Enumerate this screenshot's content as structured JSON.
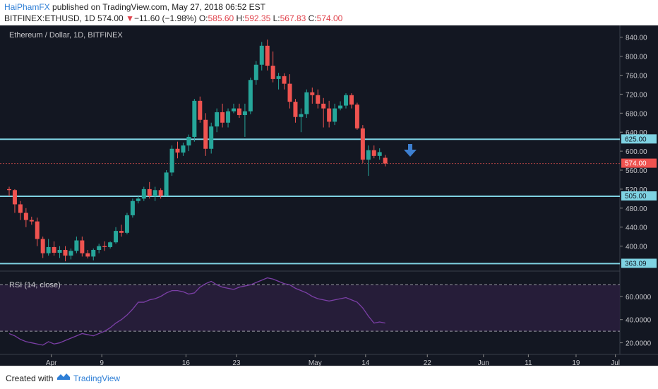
{
  "header": {
    "author": "HaiPhamFX",
    "published": " published on TradingView.com, May 27, 2018 06:52 EST",
    "symbol": "BITFINEX:ETHUSD, 1D",
    "price": "574.00",
    "change_arrow": "▼",
    "change": "−11.60 (−1.98%)",
    "o_label": "O:",
    "o_val": "585.60",
    "h_label": "H:",
    "h_val": "592.35",
    "l_label": "L:",
    "l_val": "567.83",
    "c_label": "C:",
    "c_val": "574.00"
  },
  "footer": {
    "created": "Created with",
    "brand": "TradingView"
  },
  "colors": {
    "up": "#26a69a",
    "down": "#ef5350",
    "level": "#7fd3e3",
    "rsi": "#7b3fa6",
    "bg": "#131722"
  },
  "chart_data": {
    "type": "candlestick",
    "title": "Ethereum / Dollar, 1D, BITFINEX",
    "ylim": [
      360,
      850
    ],
    "y_ticks": [
      400,
      440,
      480,
      520,
      560,
      600,
      640,
      680,
      720,
      760,
      800,
      840
    ],
    "x_ticks": [
      "Apr",
      "9",
      "16",
      "23",
      "May",
      "14",
      "22",
      "Jun",
      "11",
      "19",
      "Jul"
    ],
    "level_lines": [
      625.0,
      505.0,
      363.09
    ],
    "level_labels": [
      "625.00",
      "505.00",
      "363.09"
    ],
    "last_price": 574.0,
    "last_price_label": "574.00",
    "candles": [
      {
        "o": 520,
        "h": 525,
        "l": 505,
        "c": 518
      },
      {
        "o": 518,
        "h": 520,
        "l": 470,
        "c": 488
      },
      {
        "o": 488,
        "h": 495,
        "l": 455,
        "c": 470
      },
      {
        "o": 470,
        "h": 480,
        "l": 440,
        "c": 455
      },
      {
        "o": 455,
        "h": 462,
        "l": 445,
        "c": 452
      },
      {
        "o": 452,
        "h": 460,
        "l": 400,
        "c": 415
      },
      {
        "o": 415,
        "h": 420,
        "l": 375,
        "c": 385
      },
      {
        "o": 385,
        "h": 415,
        "l": 380,
        "c": 398
      },
      {
        "o": 398,
        "h": 410,
        "l": 380,
        "c": 386
      },
      {
        "o": 386,
        "h": 400,
        "l": 375,
        "c": 392
      },
      {
        "o": 392,
        "h": 400,
        "l": 368,
        "c": 380
      },
      {
        "o": 380,
        "h": 395,
        "l": 372,
        "c": 390
      },
      {
        "o": 390,
        "h": 420,
        "l": 385,
        "c": 412
      },
      {
        "o": 412,
        "h": 420,
        "l": 378,
        "c": 385
      },
      {
        "o": 385,
        "h": 392,
        "l": 374,
        "c": 378
      },
      {
        "o": 378,
        "h": 395,
        "l": 370,
        "c": 392
      },
      {
        "o": 392,
        "h": 405,
        "l": 385,
        "c": 400
      },
      {
        "o": 400,
        "h": 410,
        "l": 390,
        "c": 398
      },
      {
        "o": 398,
        "h": 410,
        "l": 395,
        "c": 408
      },
      {
        "o": 408,
        "h": 440,
        "l": 405,
        "c": 432
      },
      {
        "o": 432,
        "h": 445,
        "l": 420,
        "c": 428
      },
      {
        "o": 428,
        "h": 470,
        "l": 425,
        "c": 465
      },
      {
        "o": 465,
        "h": 500,
        "l": 460,
        "c": 495
      },
      {
        "o": 495,
        "h": 505,
        "l": 490,
        "c": 500
      },
      {
        "o": 500,
        "h": 525,
        "l": 495,
        "c": 520
      },
      {
        "o": 520,
        "h": 535,
        "l": 500,
        "c": 505
      },
      {
        "o": 505,
        "h": 525,
        "l": 495,
        "c": 518
      },
      {
        "o": 518,
        "h": 522,
        "l": 500,
        "c": 506
      },
      {
        "o": 506,
        "h": 560,
        "l": 505,
        "c": 555
      },
      {
        "o": 555,
        "h": 612,
        "l": 548,
        "c": 605
      },
      {
        "o": 605,
        "h": 620,
        "l": 585,
        "c": 597
      },
      {
        "o": 597,
        "h": 618,
        "l": 590,
        "c": 612
      },
      {
        "o": 612,
        "h": 635,
        "l": 600,
        "c": 630
      },
      {
        "o": 630,
        "h": 710,
        "l": 620,
        "c": 706
      },
      {
        "o": 706,
        "h": 715,
        "l": 660,
        "c": 666
      },
      {
        "o": 666,
        "h": 680,
        "l": 590,
        "c": 605
      },
      {
        "o": 605,
        "h": 660,
        "l": 595,
        "c": 652
      },
      {
        "o": 652,
        "h": 690,
        "l": 640,
        "c": 682
      },
      {
        "o": 682,
        "h": 700,
        "l": 650,
        "c": 660
      },
      {
        "o": 660,
        "h": 690,
        "l": 650,
        "c": 684
      },
      {
        "o": 684,
        "h": 700,
        "l": 680,
        "c": 690
      },
      {
        "o": 690,
        "h": 700,
        "l": 670,
        "c": 676
      },
      {
        "o": 676,
        "h": 700,
        "l": 630,
        "c": 684
      },
      {
        "o": 684,
        "h": 755,
        "l": 678,
        "c": 750
      },
      {
        "o": 750,
        "h": 790,
        "l": 740,
        "c": 782
      },
      {
        "o": 782,
        "h": 830,
        "l": 770,
        "c": 822
      },
      {
        "o": 822,
        "h": 835,
        "l": 770,
        "c": 780
      },
      {
        "o": 780,
        "h": 810,
        "l": 745,
        "c": 752
      },
      {
        "o": 752,
        "h": 765,
        "l": 730,
        "c": 758
      },
      {
        "o": 758,
        "h": 764,
        "l": 730,
        "c": 742
      },
      {
        "o": 742,
        "h": 762,
        "l": 690,
        "c": 704
      },
      {
        "o": 704,
        "h": 710,
        "l": 660,
        "c": 672
      },
      {
        "o": 672,
        "h": 690,
        "l": 640,
        "c": 678
      },
      {
        "o": 678,
        "h": 730,
        "l": 670,
        "c": 724
      },
      {
        "o": 724,
        "h": 734,
        "l": 700,
        "c": 718
      },
      {
        "o": 718,
        "h": 730,
        "l": 690,
        "c": 700
      },
      {
        "o": 700,
        "h": 712,
        "l": 650,
        "c": 690
      },
      {
        "o": 690,
        "h": 706,
        "l": 650,
        "c": 662
      },
      {
        "o": 662,
        "h": 700,
        "l": 655,
        "c": 690
      },
      {
        "o": 690,
        "h": 705,
        "l": 686,
        "c": 696
      },
      {
        "o": 696,
        "h": 722,
        "l": 690,
        "c": 718
      },
      {
        "o": 718,
        "h": 722,
        "l": 690,
        "c": 698
      },
      {
        "o": 698,
        "h": 702,
        "l": 645,
        "c": 648
      },
      {
        "o": 648,
        "h": 655,
        "l": 575,
        "c": 582
      },
      {
        "o": 582,
        "h": 612,
        "l": 548,
        "c": 602
      },
      {
        "o": 602,
        "h": 612,
        "l": 585,
        "c": 590
      },
      {
        "o": 590,
        "h": 606,
        "l": 582,
        "c": 598
      },
      {
        "o": 586,
        "h": 592,
        "l": 568,
        "c": 574
      }
    ],
    "rsi": {
      "label": "RSI (14, close)",
      "ylim": [
        10,
        80
      ],
      "ticks": [
        20,
        40,
        60
      ],
      "tick_labels": [
        "20.0000",
        "40.0000",
        "60.0000"
      ],
      "bands": [
        70,
        30
      ],
      "values": [
        28,
        26,
        23,
        21,
        20,
        19,
        18,
        21,
        19,
        20,
        22,
        24,
        26,
        28,
        27,
        26,
        28,
        30,
        33,
        37,
        40,
        44,
        49,
        55,
        55,
        57,
        58,
        60,
        63,
        65,
        65,
        64,
        62,
        63,
        68,
        71,
        73,
        70,
        68,
        67,
        66,
        68,
        69,
        70,
        72,
        74,
        76,
        75,
        73,
        71,
        70,
        67,
        65,
        63,
        60,
        58,
        57,
        56,
        57,
        58,
        59,
        57,
        55,
        50,
        43,
        37,
        38,
        37
      ]
    }
  }
}
